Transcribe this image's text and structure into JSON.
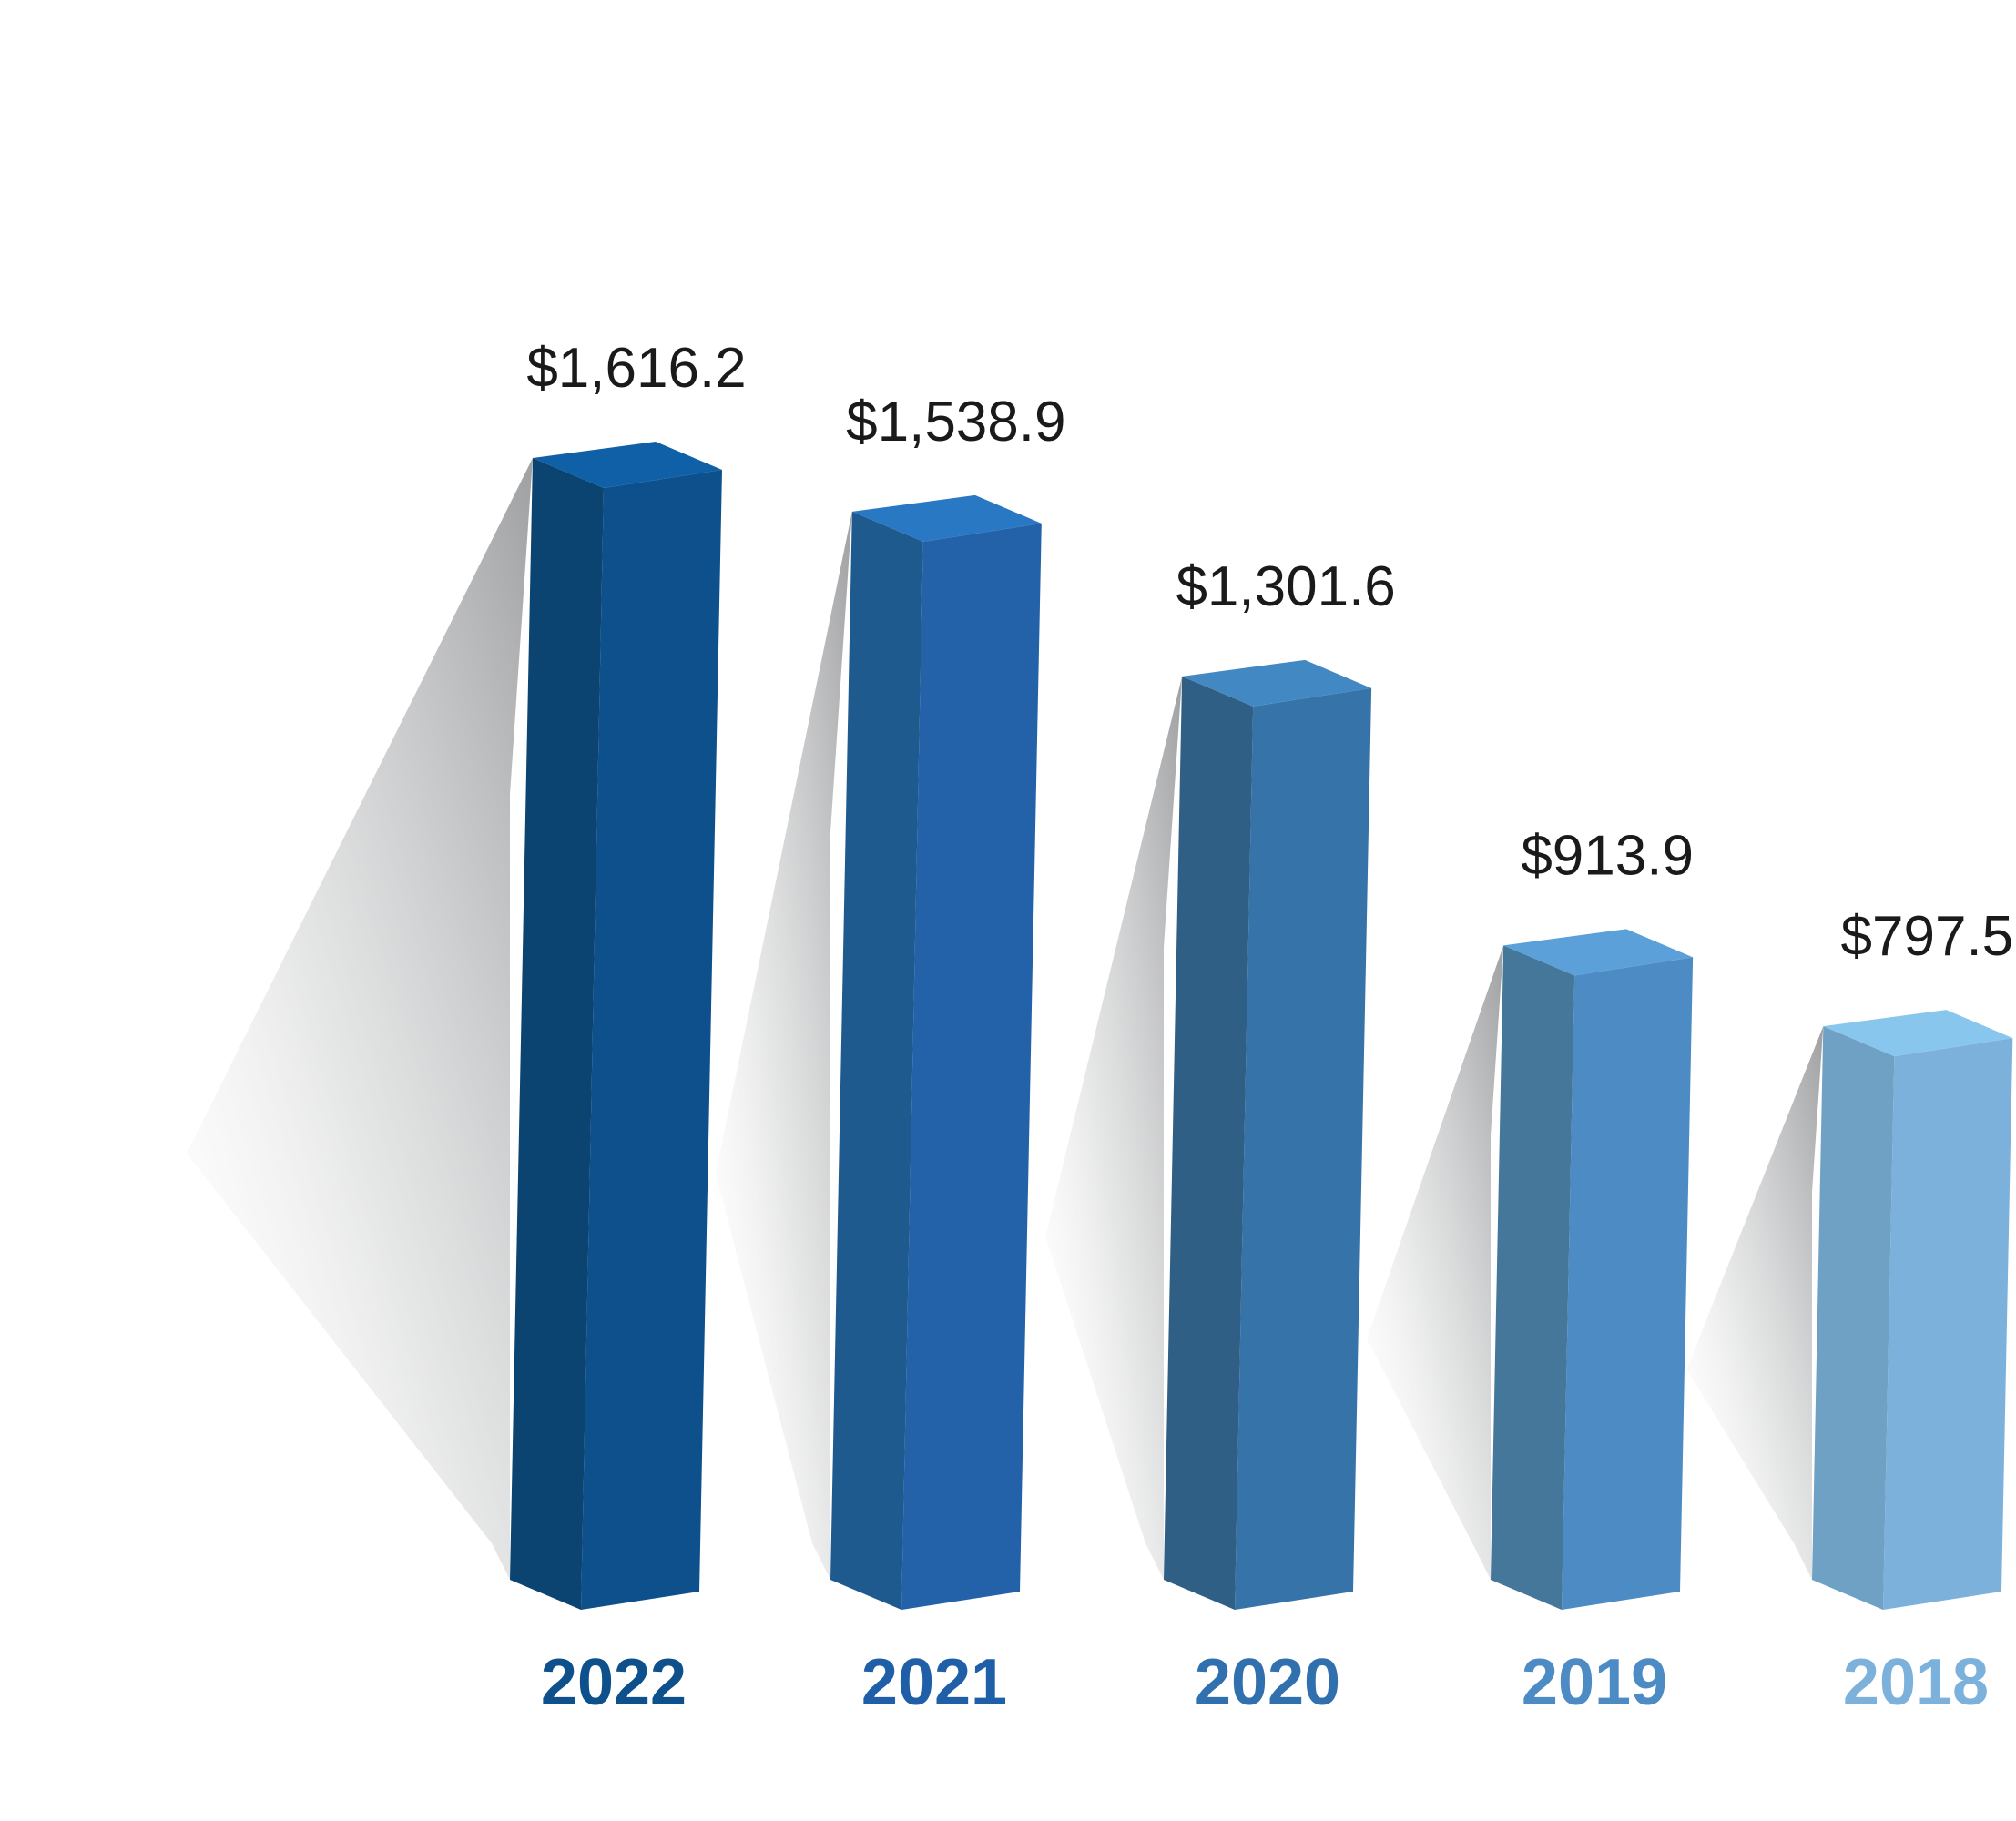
{
  "chart_data": {
    "type": "bar",
    "title": "",
    "xlabel": "",
    "ylabel": "",
    "grid": false,
    "legend": "none",
    "categories": [
      "2022",
      "2021",
      "2020",
      "2019",
      "2018"
    ],
    "values": [
      1616.2,
      1538.9,
      1301.6,
      913.9,
      797.5
    ],
    "value_labels": [
      "$1,616.2",
      "$1,538.9",
      "$1,301.6",
      "$913.9",
      "$797.5"
    ],
    "ylim": [
      0,
      1616.2
    ],
    "colors": {
      "front": [
        "#0d508c",
        "#2361a8",
        "#3673a8",
        "#4d8bc4",
        "#7cb1dc"
      ],
      "side": [
        "#0b4470",
        "#1f5a8f",
        "#2f5f85",
        "#447799",
        "#6fa1c4"
      ],
      "top": [
        "#0f60a6",
        "#2878c4",
        "#4289c4",
        "#5ba0d8",
        "#89c6ee"
      ],
      "year": [
        "#0d508c",
        "#1f5fa8",
        "#3170ae",
        "#4d8bc4",
        "#7cb1dc"
      ]
    }
  }
}
